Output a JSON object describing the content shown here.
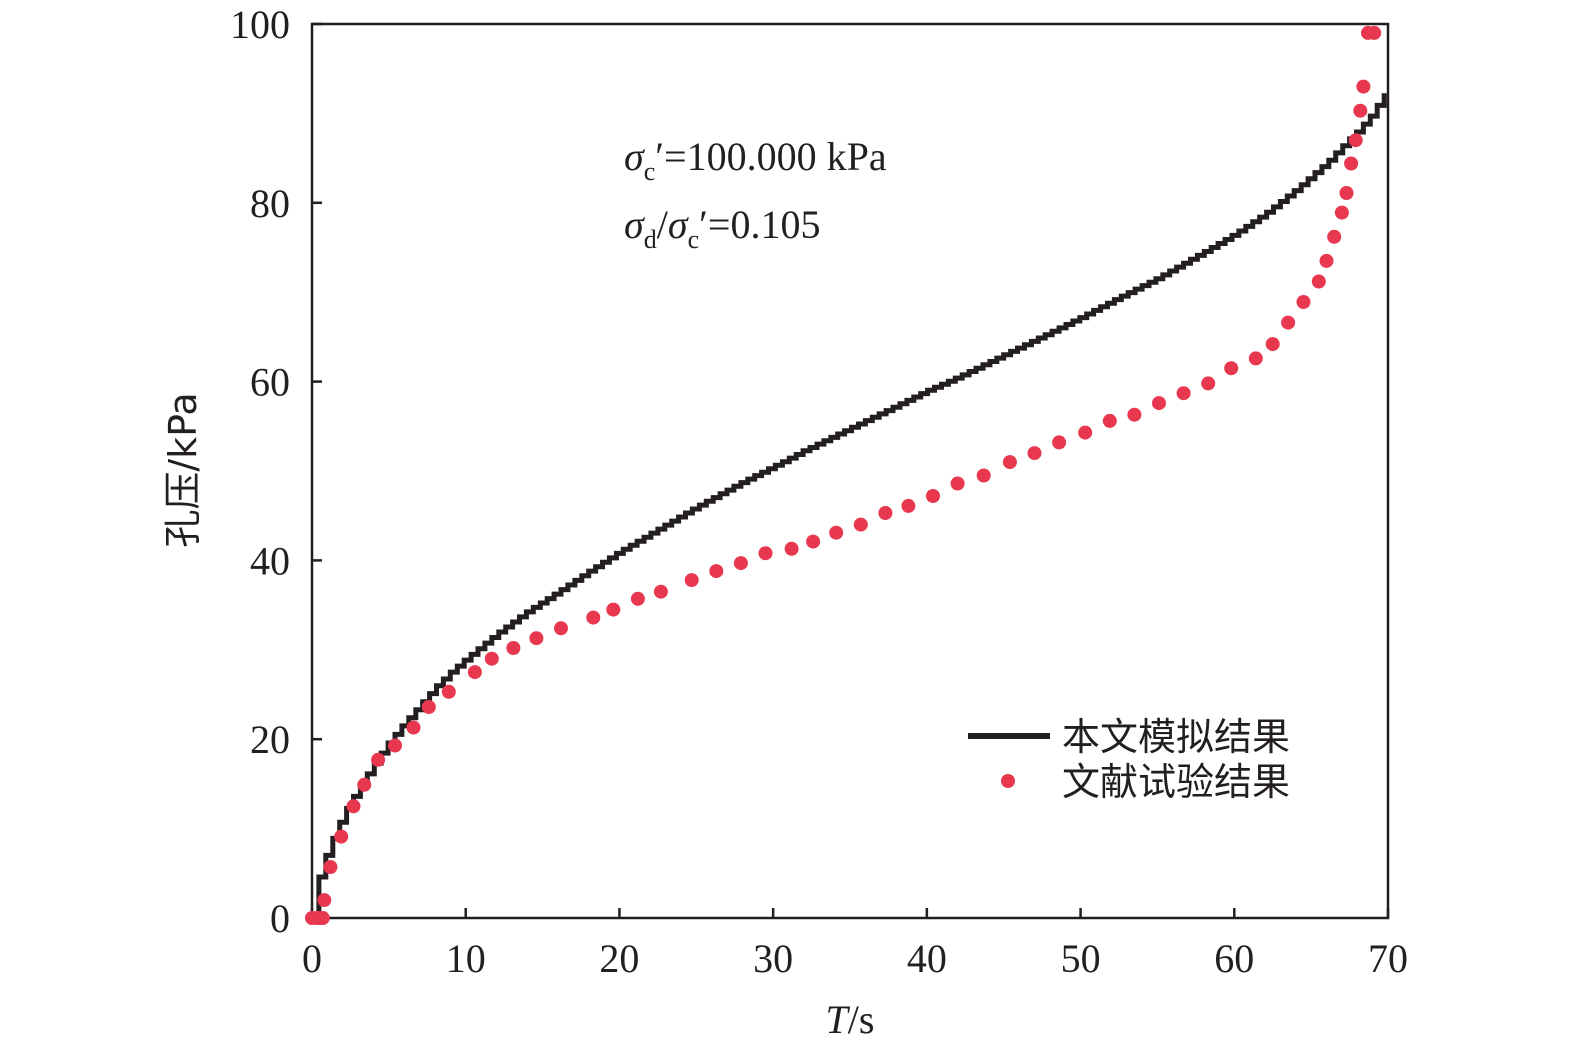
{
  "chart_data": {
    "type": "line",
    "xlabel_italic": "T",
    "xlabel_unit": "/s",
    "ylabel": "孔压/kPa",
    "xlim": [
      0,
      70
    ],
    "ylim": [
      0,
      100
    ],
    "x_ticks": [
      0,
      10,
      20,
      30,
      40,
      50,
      60,
      70
    ],
    "y_ticks": [
      0,
      20,
      40,
      60,
      80,
      100
    ],
    "grid": false,
    "legend_position": "bottom-right",
    "annotations": {
      "line1_symbol": "σ",
      "line1_sub": "c",
      "line1_rest": "′=100.000 kPa",
      "line2_symbol1": "σ",
      "line2_sub1": "d",
      "line2_slash": "/",
      "line2_symbol2": "σ",
      "line2_sub2": "c",
      "line2_rest": "′=0.105"
    },
    "colors": {
      "simulation": "#231f20",
      "experiment": "#e8384f",
      "axis": "#231f20"
    },
    "series": [
      {
        "name": "本文模拟结果",
        "kind": "step-line",
        "x": [
          0,
          0.2,
          0.5,
          1,
          1.5,
          2,
          3,
          4,
          5,
          6,
          7,
          8,
          9,
          10,
          12,
          14,
          16,
          18,
          20,
          22,
          25,
          28,
          30,
          32,
          35,
          38,
          40,
          42,
          45,
          48,
          50,
          52,
          55,
          58,
          60,
          62,
          64,
          66,
          67,
          68,
          69,
          70
        ],
        "y": [
          0,
          2.5,
          5,
          7.5,
          9.5,
          11.5,
          14.5,
          17.2,
          19.7,
          21.8,
          23.8,
          25.8,
          27.5,
          29,
          31.8,
          34.3,
          36.5,
          38.8,
          41,
          43,
          46,
          48.8,
          50.5,
          52.3,
          54.8,
          57.3,
          59,
          60.5,
          63,
          65.5,
          67.2,
          69,
          71.6,
          74.5,
          76.5,
          78.8,
          81.5,
          84.5,
          86.3,
          88,
          90,
          93
        ]
      },
      {
        "name": "文献试验结果",
        "kind": "scatter",
        "x": [
          0,
          0.3,
          0.5,
          0.7,
          0.8,
          1.2,
          1.9,
          2.7,
          3.4,
          4.3,
          5.4,
          6.6,
          7.6,
          8.9,
          10.6,
          11.7,
          13.1,
          14.6,
          16.2,
          18.3,
          19.6,
          21.2,
          22.7,
          24.7,
          26.3,
          27.9,
          29.5,
          31.2,
          32.6,
          34.1,
          35.7,
          37.3,
          38.8,
          40.4,
          42,
          43.7,
          45.4,
          47,
          48.6,
          50.3,
          51.9,
          53.5,
          55.1,
          56.7,
          58.3,
          59.8,
          61.4,
          62.5,
          63.5,
          64.5,
          65.5,
          66,
          66.5,
          67,
          67.3,
          67.6,
          67.9,
          68.2,
          68.4,
          68.7,
          69.1
        ],
        "y": [
          0,
          0,
          0,
          0,
          2,
          5.7,
          9.1,
          12.5,
          14.9,
          17.7,
          19.3,
          21.3,
          23.6,
          25.3,
          27.5,
          29,
          30.2,
          31.3,
          32.4,
          33.6,
          34.5,
          35.7,
          36.5,
          37.8,
          38.8,
          39.7,
          40.8,
          41.3,
          42.1,
          43.1,
          44,
          45.3,
          46.1,
          47.2,
          48.6,
          49.5,
          51,
          52,
          53.2,
          54.3,
          55.6,
          56.3,
          57.6,
          58.7,
          59.8,
          61.5,
          62.6,
          64.2,
          66.6,
          68.9,
          71.2,
          73.5,
          76.2,
          78.9,
          81.1,
          84.4,
          87,
          90.3,
          93,
          99,
          99
        ]
      }
    ]
  }
}
